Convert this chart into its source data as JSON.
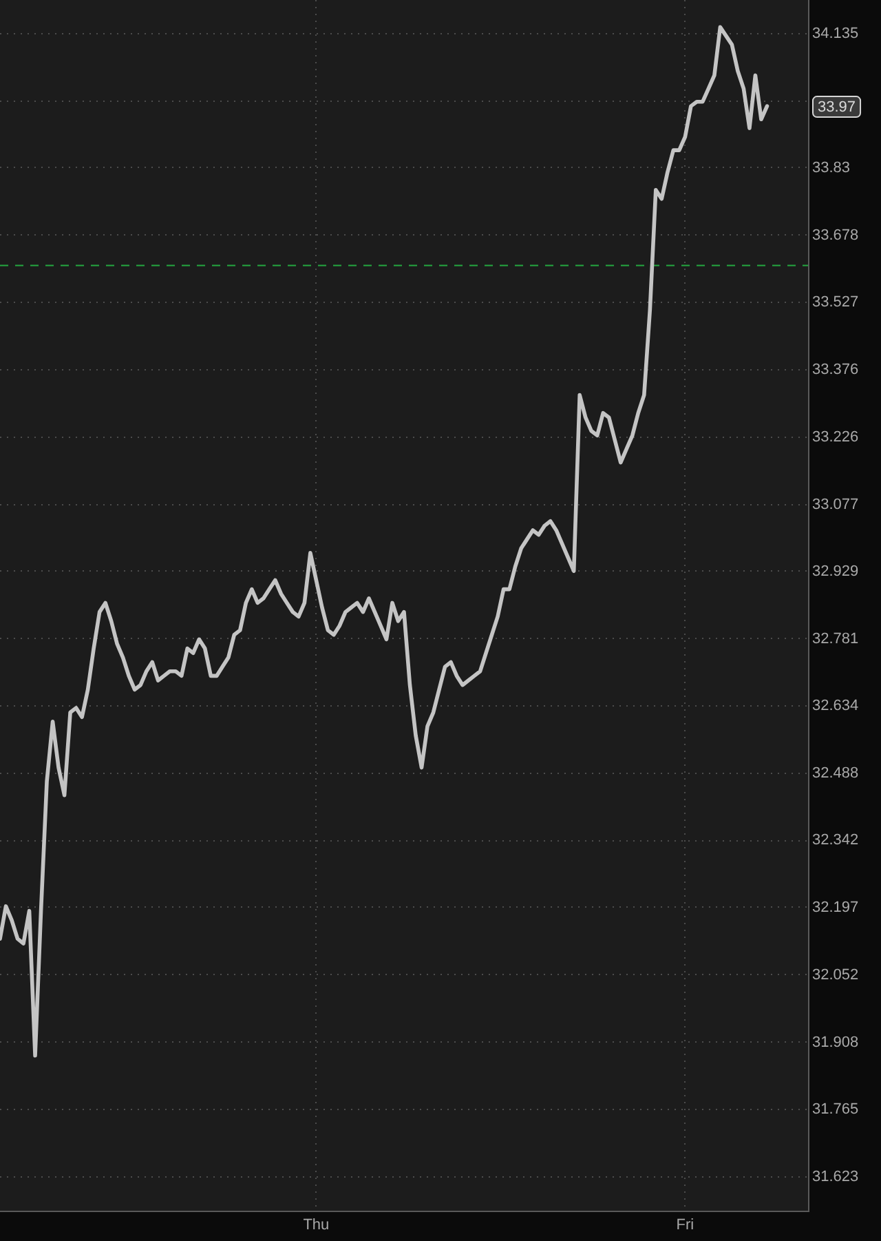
{
  "chart_data": {
    "type": "line",
    "color": "#c4c4c4",
    "categories": [
      null,
      null,
      null,
      null,
      null,
      null,
      null,
      null,
      null,
      null,
      null,
      null,
      null,
      null,
      null,
      null,
      null,
      null,
      null,
      null,
      null,
      null,
      null,
      null,
      null,
      null,
      null,
      null,
      null,
      null,
      null,
      null,
      null,
      null,
      null,
      null,
      null,
      null,
      null,
      null,
      null,
      null,
      null,
      null,
      null,
      null,
      null,
      null,
      null,
      null,
      null,
      null,
      null,
      null,
      "Thu",
      null,
      null,
      null,
      null,
      null,
      null,
      null,
      null,
      null,
      null,
      null,
      null,
      null,
      null,
      null,
      null,
      null,
      null,
      null,
      null,
      null,
      null,
      null,
      null,
      null,
      null,
      null,
      null,
      null,
      null,
      null,
      null,
      null,
      null,
      null,
      null,
      null,
      null,
      null,
      null,
      null,
      null,
      null,
      null,
      null,
      null,
      null,
      null,
      null,
      null,
      null,
      null,
      null,
      null,
      null,
      null,
      null,
      null,
      null,
      null,
      null,
      null,
      "Fri",
      null,
      null,
      null,
      null,
      null,
      null,
      null,
      null,
      null,
      null,
      null,
      null,
      null,
      null,
      null,
      null,
      null,
      null,
      null,
      null,
      null
    ],
    "values": [
      32.13,
      32.2,
      32.17,
      32.13,
      32.12,
      32.19,
      31.88,
      32.19,
      32.47,
      32.6,
      32.5,
      32.44,
      32.62,
      32.63,
      32.61,
      32.67,
      32.76,
      32.84,
      32.86,
      32.82,
      32.77,
      32.74,
      32.7,
      32.67,
      32.68,
      32.71,
      32.73,
      32.69,
      32.7,
      32.71,
      32.71,
      32.7,
      32.76,
      32.75,
      32.78,
      32.76,
      32.7,
      32.7,
      32.72,
      32.74,
      32.79,
      32.8,
      32.86,
      32.89,
      32.86,
      32.87,
      32.89,
      32.91,
      32.88,
      32.86,
      32.84,
      32.83,
      32.86,
      32.97,
      32.91,
      32.85,
      32.8,
      32.79,
      32.81,
      32.84,
      32.85,
      32.86,
      32.84,
      32.87,
      32.84,
      32.81,
      32.78,
      32.86,
      32.82,
      32.84,
      32.68,
      32.57,
      32.5,
      32.59,
      32.62,
      32.67,
      32.72,
      32.73,
      32.7,
      32.68,
      32.69,
      32.7,
      32.71,
      32.75,
      32.79,
      32.83,
      32.89,
      32.89,
      32.94,
      32.98,
      33.0,
      33.02,
      33.01,
      33.03,
      33.04,
      33.02,
      32.99,
      32.96,
      32.93,
      33.32,
      33.27,
      33.24,
      33.23,
      33.28,
      33.27,
      33.22,
      33.17,
      33.2,
      33.23,
      33.28,
      33.32,
      33.51,
      33.78,
      33.76,
      33.82,
      33.87,
      33.87,
      33.9,
      33.97,
      33.98,
      33.98,
      34.01,
      34.04,
      34.15,
      34.13,
      34.11,
      34.05,
      34.01,
      33.92,
      34.04,
      33.94,
      33.97,
      null,
      null,
      null,
      null,
      null,
      null,
      null
    ],
    "ylim": [
      31.551,
      34.212
    ],
    "log": true,
    "yticks": [
      31.623,
      31.765,
      31.908,
      32.052,
      32.197,
      32.342,
      32.488,
      32.634,
      32.781,
      32.929,
      33.077,
      33.226,
      33.376,
      33.527,
      33.678,
      33.83,
      {
        "value": 33.982,
        "label": null
      },
      34.135
    ],
    "grid": true,
    "ref_lines": [
      {
        "axis": "y",
        "value": 33.61,
        "color": "#24a840",
        "line_style": "dashed"
      }
    ],
    "annotations": [
      "33.97"
    ]
  }
}
